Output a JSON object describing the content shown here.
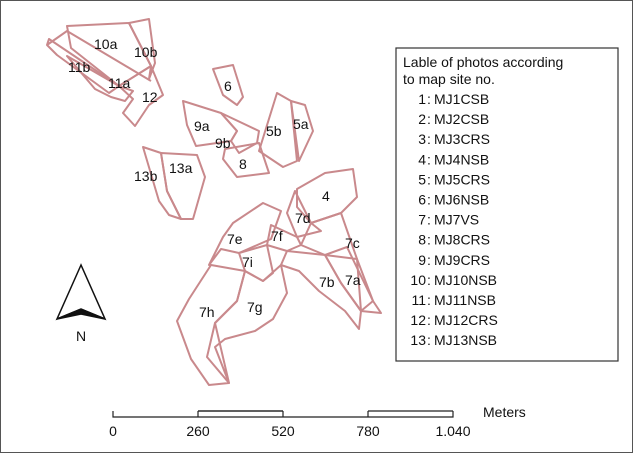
{
  "legend": {
    "title_line1": "Lable of photos according",
    "title_line2": "to map site no.",
    "entries": [
      {
        "num": "1",
        "code": "MJ1CSB"
      },
      {
        "num": "2",
        "code": "MJ2CSB"
      },
      {
        "num": "3",
        "code": "MJ3CRS"
      },
      {
        "num": "4",
        "code": "MJ4NSB"
      },
      {
        "num": "5",
        "code": "MJ5CRS"
      },
      {
        "num": "6",
        "code": "MJ6NSB"
      },
      {
        "num": "7",
        "code": "MJ7VS"
      },
      {
        "num": "8",
        "code": "MJ8CRS"
      },
      {
        "num": "9",
        "code": "MJ9CRS"
      },
      {
        "num": "10",
        "code": "MJ10NSB"
      },
      {
        "num": "11",
        "code": "MJ11NSB"
      },
      {
        "num": "12",
        "code": "MJ12CRS"
      },
      {
        "num": "13",
        "code": "MJ13NSB"
      }
    ]
  },
  "north_arrow": {
    "label": "N"
  },
  "scale_bar": {
    "ticks": [
      "0",
      "260",
      "520",
      "780",
      "1.040"
    ],
    "unit": "Meters"
  },
  "site_labels": {
    "s10a": "10a",
    "s10b": "10b",
    "s11b": "11b",
    "s11a": "11a",
    "s12": "12",
    "s6": "6",
    "s9a": "9a",
    "s9b": "9b",
    "s8": "8",
    "s5b": "5b",
    "s5a": "5a",
    "s13b": "13b",
    "s13a": "13a",
    "s4": "4",
    "s7d": "7d",
    "s7e": "7e",
    "s7f": "7f",
    "s7c": "7c",
    "s7i": "7i",
    "s7b": "7b",
    "s7a": "7a",
    "s7h": "7h",
    "s7g": "7g"
  },
  "colors": {
    "site_outline": "#c9898c",
    "frame": "#555555",
    "text": "#111111"
  }
}
